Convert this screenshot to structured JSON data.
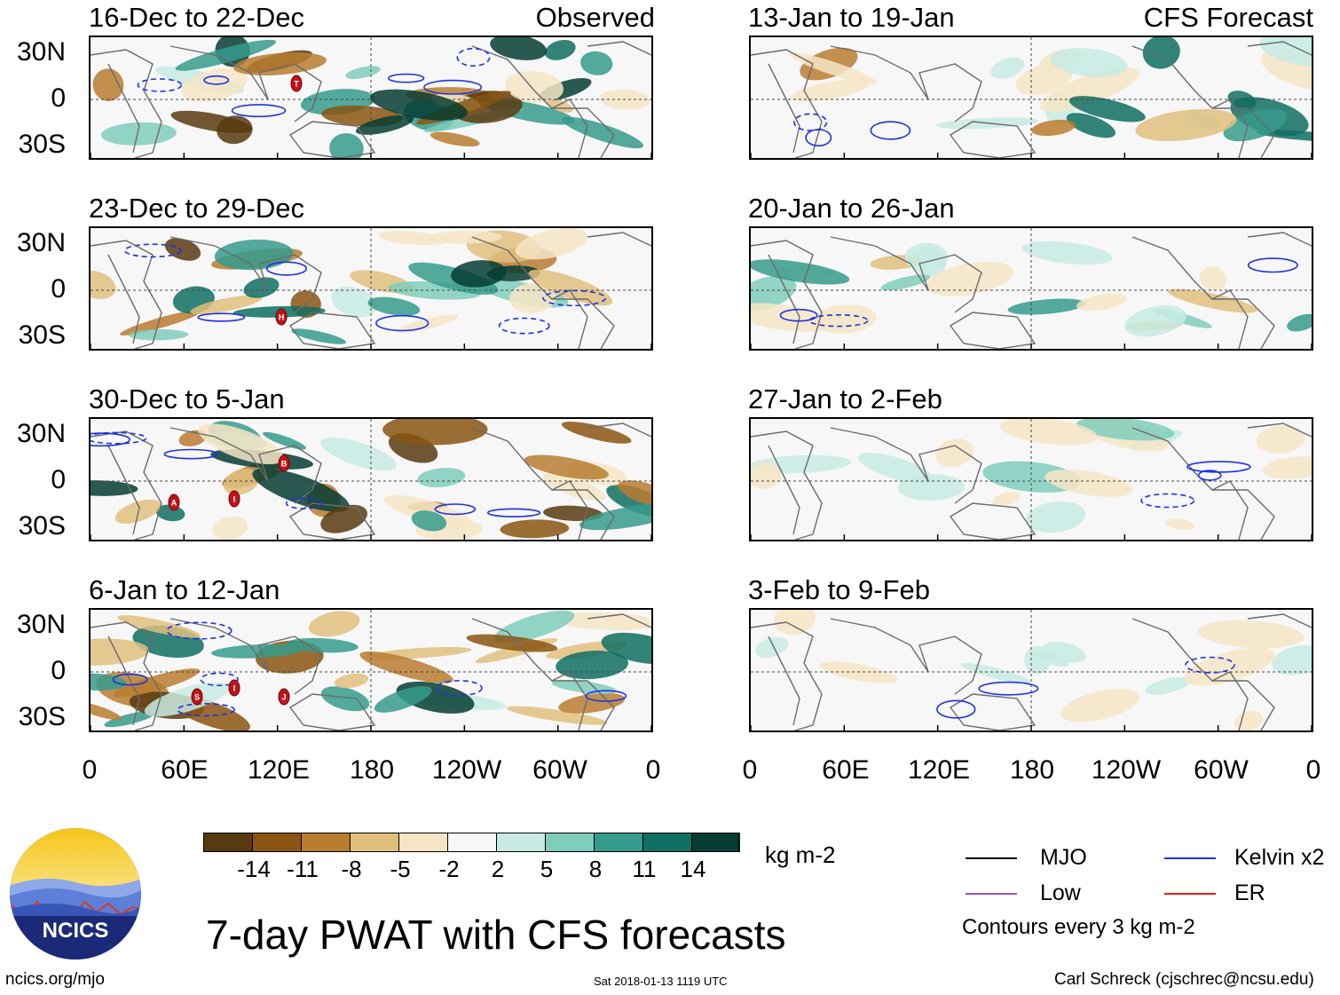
{
  "colors": {
    "colorbar": [
      "#583a11",
      "#8a5512",
      "#b97d30",
      "#e1c07e",
      "#f6e5c5",
      "#f7f7f7",
      "#c7ebe3",
      "#7fcdbb",
      "#359b8c",
      "#0f6f62",
      "#053d33"
    ],
    "mjo": "#000000",
    "kelvin": "#1e32e6",
    "low": "#9b4fc9",
    "er": "#e3201b",
    "coast": "#6b6b6b"
  },
  "panels": {
    "observed_tag": "Observed",
    "forecast_tag": "CFS Forecast",
    "left": [
      {
        "title": "16-Dec to 22-Dec",
        "storms": [
          "T"
        ]
      },
      {
        "title": "23-Dec to 29-Dec",
        "storms": [
          "H"
        ]
      },
      {
        "title": "30-Dec to 5-Jan",
        "storms": [
          "B",
          "A",
          "I"
        ]
      },
      {
        "title": "6-Jan to 12-Jan",
        "storms": [
          "I",
          "S",
          "J"
        ]
      }
    ],
    "right": [
      {
        "title": "13-Jan to 19-Jan"
      },
      {
        "title": "20-Jan to 26-Jan"
      },
      {
        "title": "27-Jan to 2-Feb"
      },
      {
        "title": "3-Feb to 9-Feb"
      }
    ],
    "lat_labels": [
      "30N",
      "0",
      "30S"
    ],
    "lon_labels": [
      "0",
      "60E",
      "120E",
      "180",
      "120W",
      "60W",
      "0"
    ]
  },
  "colorbar": {
    "labels": [
      "-14",
      "-11",
      "-8",
      "-5",
      "-2",
      "2",
      "5",
      "8",
      "11",
      "14"
    ],
    "units": "kg m-2"
  },
  "legend": {
    "items": [
      {
        "label": "MJO",
        "color_key": "mjo"
      },
      {
        "label": "Kelvin x2",
        "color_key": "kelvin"
      },
      {
        "label": "Low",
        "color_key": "low"
      },
      {
        "label": "ER",
        "color_key": "er"
      }
    ],
    "note": "Contours every 3 kg m-2"
  },
  "logo": {
    "text": "NCICS"
  },
  "footer": {
    "title": "7-day PWAT with CFS forecasts",
    "url": "ncics.org/mjo",
    "timestamp": "Sat 2018-01-13 1119 UTC",
    "credit": "Carl Schreck (cjschrec@ncsu.edu)"
  }
}
